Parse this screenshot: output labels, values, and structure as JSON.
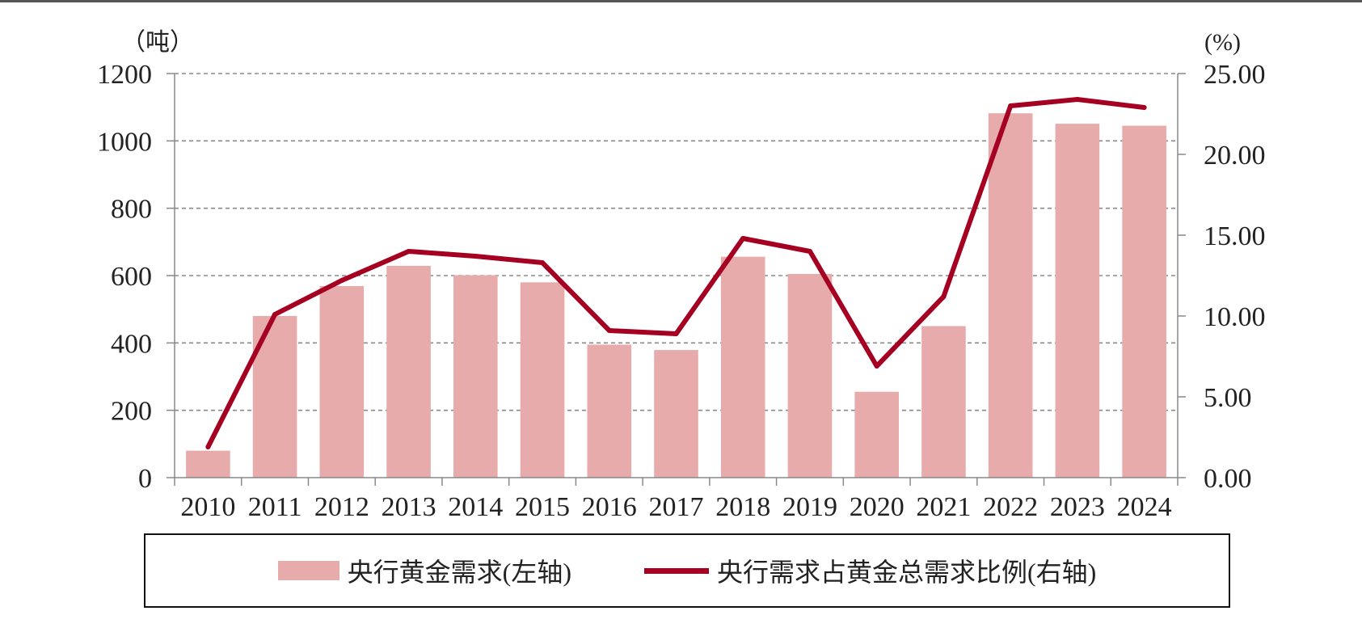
{
  "colors": {
    "bar": "#e8abab",
    "line": "#a50021",
    "grid": "#8a8a8a",
    "axis": "#888888"
  },
  "chart_data": {
    "type": "bar",
    "categories": [
      "2010",
      "2011",
      "2012",
      "2013",
      "2014",
      "2015",
      "2016",
      "2017",
      "2018",
      "2019",
      "2020",
      "2021",
      "2022",
      "2023",
      "2024"
    ],
    "series": [
      {
        "name": "央行黄金需求(左轴)",
        "type": "bar",
        "axis": "left",
        "values": [
          80,
          480,
          569,
          629,
          601,
          580,
          395,
          379,
          656,
          605,
          255,
          450,
          1082,
          1051,
          1045
        ]
      },
      {
        "name": "央行需求占黄金总需求比例(右轴)",
        "type": "line",
        "axis": "right",
        "values": [
          1.9,
          10.1,
          12.2,
          14.0,
          13.7,
          13.3,
          9.1,
          8.9,
          14.8,
          14.0,
          6.9,
          11.2,
          23.0,
          23.4,
          22.9
        ]
      }
    ],
    "left_axis": {
      "unit": "（吨）",
      "min": 0,
      "max": 1200,
      "ticks": [
        "0",
        "200",
        "400",
        "600",
        "800",
        "1000",
        "1200"
      ]
    },
    "right_axis": {
      "unit": "(%)",
      "min": 0,
      "max": 25,
      "ticks": [
        "0.00",
        "5.00",
        "10.00",
        "15.00",
        "20.00",
        "25.00"
      ]
    },
    "grid": true,
    "legend_position": "bottom"
  }
}
